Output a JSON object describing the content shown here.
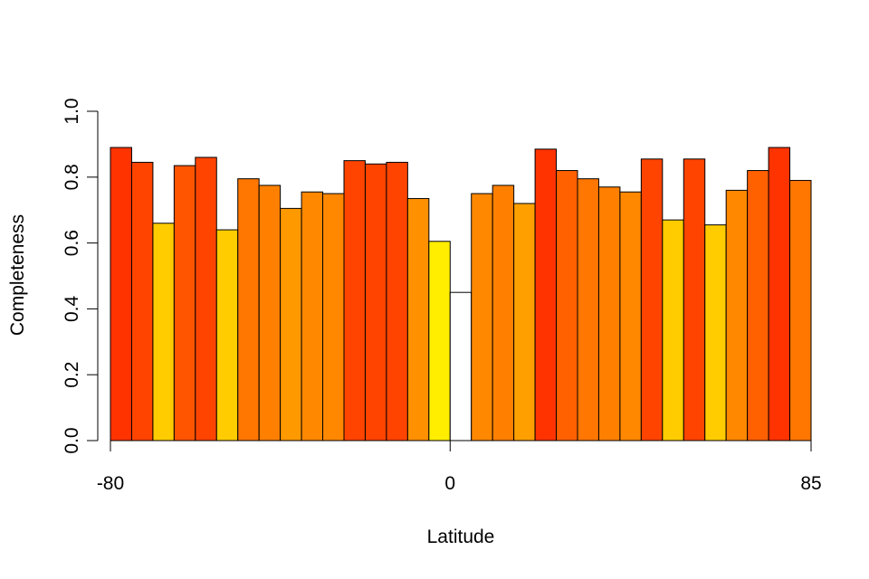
{
  "chart_data": {
    "type": "bar",
    "xlabel": "Latitude",
    "ylabel": "Completeness",
    "ylim": [
      0,
      1
    ],
    "xlim": [
      -80,
      85
    ],
    "y_ticks": [
      0.0,
      0.2,
      0.4,
      0.6,
      0.8,
      1.0
    ],
    "y_tick_labels": [
      "0.0",
      "0.2",
      "0.4",
      "0.6",
      "0.8",
      "1.0"
    ],
    "x_ticks": [
      -80,
      0,
      85
    ],
    "x_tick_labels": [
      "-80",
      "0",
      "85"
    ],
    "bin_edges": [
      -80,
      -75,
      -70,
      -65,
      -60,
      -55,
      -50,
      -45,
      -40,
      -35,
      -30,
      -25,
      -20,
      -15,
      -10,
      -5,
      0,
      5,
      10,
      15,
      20,
      25,
      30,
      35,
      40,
      45,
      50,
      55,
      60,
      65,
      70,
      75,
      80,
      85
    ],
    "values": [
      0.89,
      0.845,
      0.66,
      0.835,
      0.86,
      0.64,
      0.795,
      0.775,
      0.705,
      0.755,
      0.75,
      0.85,
      0.84,
      0.845,
      0.735,
      0.605,
      0.45,
      0.75,
      0.775,
      0.72,
      0.885,
      0.82,
      0.795,
      0.77,
      0.755,
      0.855,
      0.67,
      0.855,
      0.655,
      0.76,
      0.82,
      0.89,
      0.79
    ],
    "colors": [
      "#ff3300",
      "#ff4400",
      "#ffcc00",
      "#ff5500",
      "#ff4400",
      "#ffcc00",
      "#ff7700",
      "#ff8000",
      "#ff9900",
      "#ff8800",
      "#ff8800",
      "#ff4400",
      "#ff4400",
      "#ff4400",
      "#ff9000",
      "#ffee00",
      "#ffffff",
      "#ff8800",
      "#ff8000",
      "#ffa000",
      "#ff3300",
      "#ff6000",
      "#ff7700",
      "#ff8000",
      "#ff8800",
      "#ff4400",
      "#ffcc00",
      "#ff4400",
      "#ffcc00",
      "#ff8800",
      "#ff6000",
      "#ff3300",
      "#ff7700"
    ],
    "grid": false,
    "legend": "none"
  }
}
